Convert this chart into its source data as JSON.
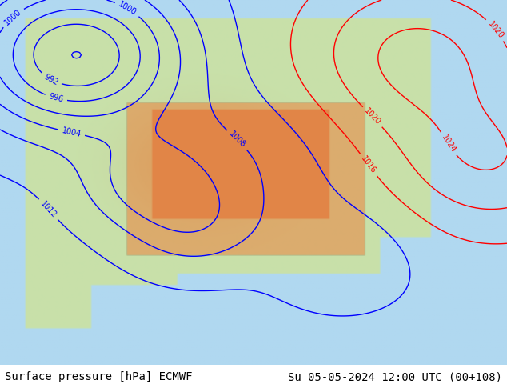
{
  "title_left": "Surface pressure [hPa] ECMWF",
  "title_right": "Su 05-05-2024 12:00 UTC (00+108)",
  "title_fontsize": 10,
  "title_color": "#000000",
  "background_color": "#add8e6",
  "fig_width": 6.34,
  "fig_height": 4.9,
  "dpi": 100,
  "footer_text_left": "Surface pressure [hPa] ECMWF",
  "footer_text_right": "Su 05-05-2024 12:00 UTC (00+108)",
  "map_bg_ocean": "#b0d8f0",
  "map_bg_land_low": "#d4e8b0",
  "map_bg_land_high": "#c8b87a",
  "contour_color_low": "#0000ff",
  "contour_color_high": "#ff0000",
  "contour_color_black": "#000000",
  "contour_linewidth": 1.0,
  "label_fontsize": 7
}
